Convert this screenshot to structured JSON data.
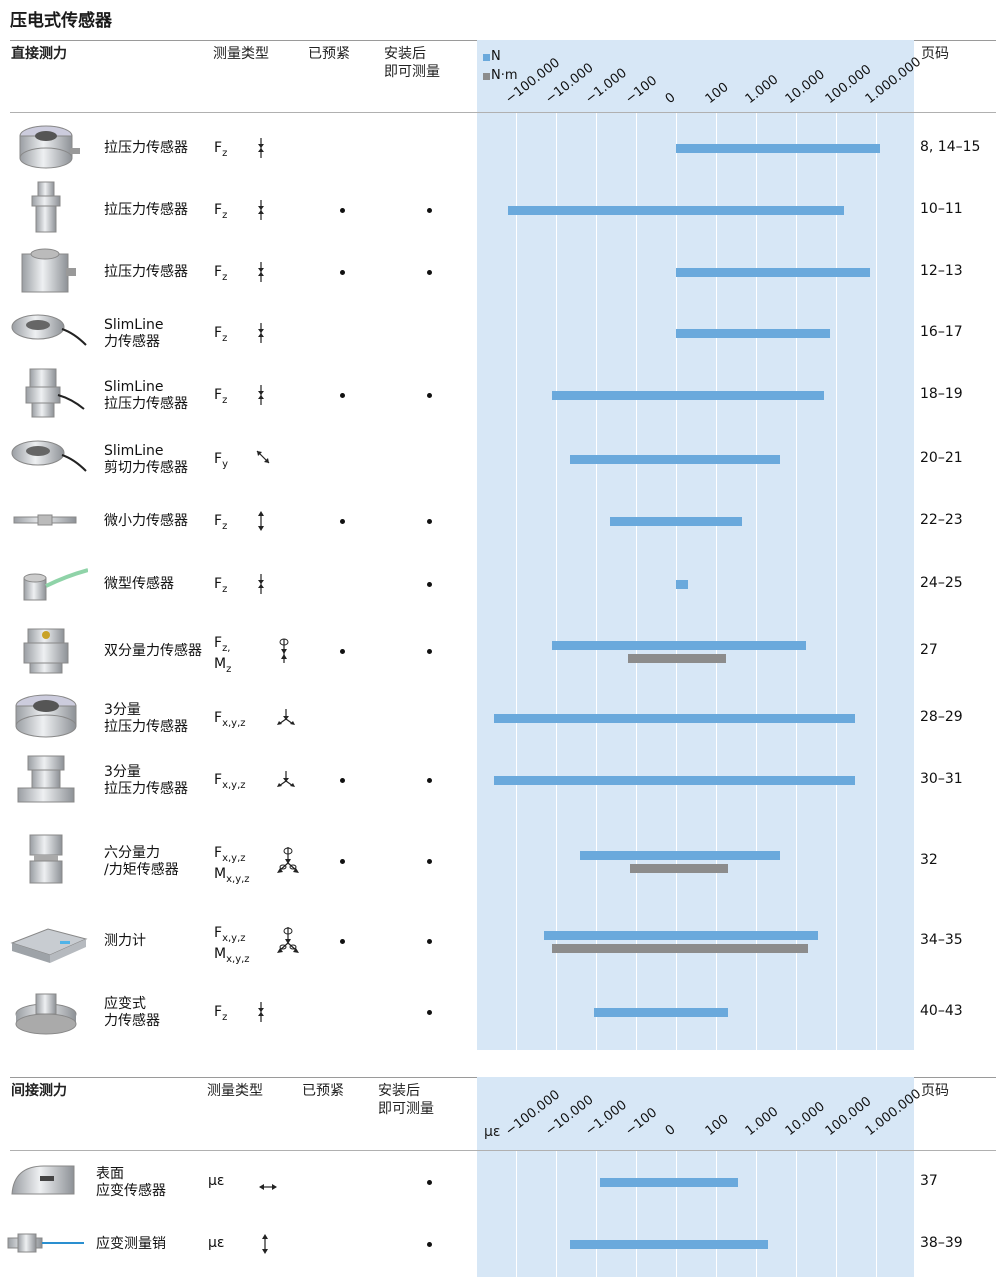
{
  "title": "压电式传感器",
  "direct": {
    "section": "直接测力",
    "col_type": "测量类型",
    "col_preloaded": "已预紧",
    "col_ready_1": "安装后",
    "col_ready_2": "即可测量",
    "col_page": "页码",
    "legend": [
      {
        "label": "N",
        "color": "#6aa9dc"
      },
      {
        "label": "N·m",
        "color": "#8c8c8c"
      }
    ],
    "ticks": [
      "−100.000",
      "−10.000",
      "−1.000",
      "−100",
      "0",
      "100",
      "1.000",
      "10.000",
      "100.000",
      "1.000.000"
    ],
    "rows": [
      {
        "name": [
          "拉压力传感器"
        ],
        "type": [
          "F",
          "z"
        ],
        "type2": null,
        "preloaded": false,
        "ready": false,
        "page": "8, 14–15",
        "bars": [
          {
            "kind": "n",
            "from": 0,
            "to": 5.1
          }
        ]
      },
      {
        "name": [
          "拉压力传感器"
        ],
        "type": [
          "F",
          "z"
        ],
        "type2": null,
        "preloaded": true,
        "ready": true,
        "page": "10–11",
        "bars": [
          {
            "kind": "n",
            "from": -4.2,
            "to": 4.2
          }
        ]
      },
      {
        "name": [
          "拉压力传感器"
        ],
        "type": [
          "F",
          "z"
        ],
        "type2": null,
        "preloaded": true,
        "ready": true,
        "page": "12–13",
        "bars": [
          {
            "kind": "n",
            "from": 0,
            "to": 4.85
          }
        ]
      },
      {
        "name": [
          "SlimLine",
          "力传感器"
        ],
        "type": [
          "F",
          "z"
        ],
        "type2": null,
        "preloaded": false,
        "ready": false,
        "page": "16–17",
        "bars": [
          {
            "kind": "n",
            "from": 0,
            "to": 3.85
          }
        ]
      },
      {
        "name": [
          "SlimLine",
          "拉压力传感器"
        ],
        "type": [
          "F",
          "z"
        ],
        "type2": null,
        "preloaded": true,
        "ready": true,
        "page": "18–19",
        "bars": [
          {
            "kind": "n",
            "from": -3.1,
            "to": 3.7
          }
        ]
      },
      {
        "name": [
          "SlimLine",
          "剪切力传感器"
        ],
        "type": [
          "F",
          "y"
        ],
        "type2": null,
        "preloaded": false,
        "ready": false,
        "page": "20–21",
        "bars": [
          {
            "kind": "n",
            "from": -2.65,
            "to": 2.6
          }
        ]
      },
      {
        "name": [
          "微小力传感器"
        ],
        "type": [
          "F",
          "z"
        ],
        "type2": null,
        "preloaded": true,
        "ready": true,
        "page": "22–23",
        "bars": [
          {
            "kind": "n",
            "from": -1.65,
            "to": 1.65
          }
        ]
      },
      {
        "name": [
          "微型传感器"
        ],
        "type": [
          "F",
          "z"
        ],
        "type2": null,
        "preloaded": false,
        "ready": true,
        "page": "24–25",
        "bars": [
          {
            "kind": "n",
            "from": 0,
            "to": 0.3
          }
        ]
      },
      {
        "name": [
          "双分量力传感器"
        ],
        "type": [
          "F",
          "z,"
        ],
        "type2": [
          "M",
          "z"
        ],
        "preloaded": true,
        "ready": true,
        "page": "27",
        "bars": [
          {
            "kind": "n",
            "from": -3.1,
            "to": 3.25
          },
          {
            "kind": "nm",
            "from": -1.2,
            "to": 1.25
          }
        ]
      },
      {
        "name": [
          "3分量",
          "拉压力传感器"
        ],
        "type": [
          "F",
          "x,y,z"
        ],
        "type2": null,
        "preloaded": false,
        "ready": false,
        "page": "28–29",
        "bars": [
          {
            "kind": "n",
            "from": -4.55,
            "to": 4.47
          }
        ]
      },
      {
        "name": [
          "3分量",
          "拉压力传感器"
        ],
        "type": [
          "F",
          "x,y,z"
        ],
        "type2": null,
        "preloaded": true,
        "ready": true,
        "page": "30–31",
        "bars": [
          {
            "kind": "n",
            "from": -4.55,
            "to": 4.47
          }
        ]
      },
      {
        "name": [
          "六分量力",
          "/力矩传感器"
        ],
        "type": [
          "F",
          "x,y,z"
        ],
        "type2": [
          "M",
          "x,y,z"
        ],
        "preloaded": true,
        "ready": true,
        "page": "32",
        "bars": [
          {
            "kind": "n",
            "from": -2.4,
            "to": 2.6
          },
          {
            "kind": "nm",
            "from": -1.15,
            "to": 1.3
          }
        ]
      },
      {
        "name": [
          "测力计"
        ],
        "type": [
          "F",
          "x,y,z"
        ],
        "type2": [
          "M",
          "x,y,z"
        ],
        "preloaded": true,
        "ready": true,
        "page": "34–35",
        "bars": [
          {
            "kind": "n",
            "from": -3.3,
            "to": 3.55
          },
          {
            "kind": "nm",
            "from": -3.1,
            "to": 3.3
          }
        ]
      },
      {
        "name": [
          "应变式",
          "力传感器"
        ],
        "type": [
          "F",
          "z"
        ],
        "type2": null,
        "preloaded": false,
        "ready": true,
        "page": "40–43",
        "bars": [
          {
            "kind": "n",
            "from": -2.05,
            "to": 1.3
          }
        ]
      }
    ]
  },
  "indirect": {
    "section": "间接测力",
    "col_type": "测量类型",
    "col_preloaded": "已预紧",
    "col_ready_1": "安装后",
    "col_ready_2": "即可测量",
    "col_page": "页码",
    "unit": "με",
    "ticks": [
      "−100.000",
      "−10.000",
      "−1.000",
      "−100",
      "0",
      "100",
      "1.000",
      "10.000",
      "100.000",
      "1.000.000"
    ],
    "rows": [
      {
        "name": [
          "表面",
          "应变传感器"
        ],
        "type": "με",
        "preloaded": false,
        "ready": true,
        "page": "37",
        "bars": [
          {
            "kind": "n",
            "from": -1.9,
            "to": 1.55
          }
        ]
      },
      {
        "name": [
          "应变测量销"
        ],
        "type": "με",
        "preloaded": false,
        "ready": true,
        "page": "38–39",
        "bars": [
          {
            "kind": "n",
            "from": -2.65,
            "to": 2.3
          }
        ]
      }
    ]
  }
}
